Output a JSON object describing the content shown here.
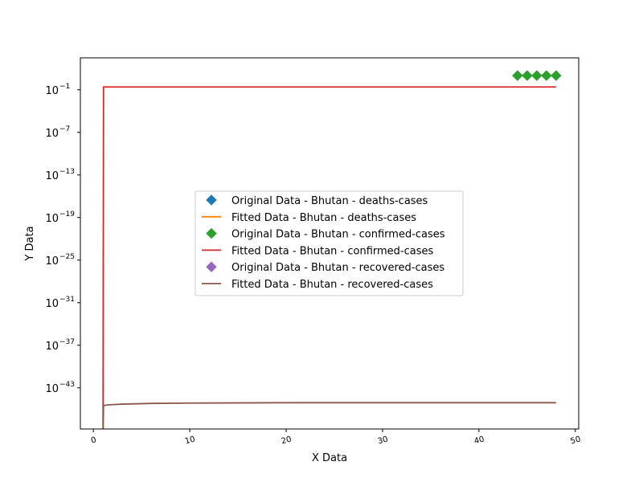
{
  "chart_data": {
    "type": "line",
    "title": "",
    "xlabel": "X Data",
    "ylabel": "Y Data",
    "yscale": "log",
    "xlim": [
      -1.35,
      50.35
    ],
    "ylim_log10": [
      -48.8,
      3.5
    ],
    "xticks": [
      0,
      10,
      20,
      30,
      40,
      50
    ],
    "xtick_labels": [
      "0",
      "10",
      "20",
      "30",
      "40",
      "50"
    ],
    "yticks": [
      {
        "base": "10",
        "exp": "−1",
        "log10": -1
      },
      {
        "base": "10",
        "exp": "−7",
        "log10": -7
      },
      {
        "base": "10",
        "exp": "−13",
        "log10": -13
      },
      {
        "base": "10",
        "exp": "−19",
        "log10": -19
      },
      {
        "base": "10",
        "exp": "−25",
        "log10": -25
      },
      {
        "base": "10",
        "exp": "−31",
        "log10": -31
      },
      {
        "base": "10",
        "exp": "−37",
        "log10": -37
      },
      {
        "base": "10",
        "exp": "−43",
        "log10": -43
      }
    ],
    "legend_position": "center",
    "grid": false,
    "series": [
      {
        "name": "Original Data - Bhutan - deaths-cases",
        "kind": "scatter",
        "marker": "diamond",
        "color": "#1f77b4",
        "points": []
      },
      {
        "name": "Fitted Data - Bhutan - deaths-cases",
        "kind": "line",
        "color": "#ff7f0e",
        "points": []
      },
      {
        "name": "Original Data - Bhutan - confirmed-cases",
        "kind": "scatter",
        "marker": "diamond",
        "color": "#2ca02c",
        "points": [
          [
            44,
            1
          ],
          [
            45,
            1
          ],
          [
            46,
            1
          ],
          [
            47,
            1
          ],
          [
            48,
            1
          ]
        ]
      },
      {
        "name": "Fitted Data - Bhutan - confirmed-cases",
        "kind": "line",
        "color": "#d62728",
        "points": [
          [
            1,
            -50
          ],
          [
            1.05,
            -0.6
          ],
          [
            10,
            -0.6
          ],
          [
            20,
            -0.6
          ],
          [
            30,
            -0.6
          ],
          [
            40,
            -0.6
          ],
          [
            48,
            -0.6
          ]
        ]
      },
      {
        "name": "Original Data - Bhutan - recovered-cases",
        "kind": "scatter",
        "marker": "diamond",
        "color": "#9467bd",
        "points": []
      },
      {
        "name": "Fitted Data - Bhutan - recovered-cases",
        "kind": "line",
        "color": "#8c564b",
        "points": [
          [
            1,
            -50
          ],
          [
            1.05,
            -45.5
          ],
          [
            1.5,
            -45.4
          ],
          [
            3,
            -45.3
          ],
          [
            6,
            -45.2
          ],
          [
            10,
            -45.15
          ],
          [
            20,
            -45.1
          ],
          [
            30,
            -45.1
          ],
          [
            40,
            -45.1
          ],
          [
            48,
            -45.1
          ]
        ]
      }
    ]
  }
}
